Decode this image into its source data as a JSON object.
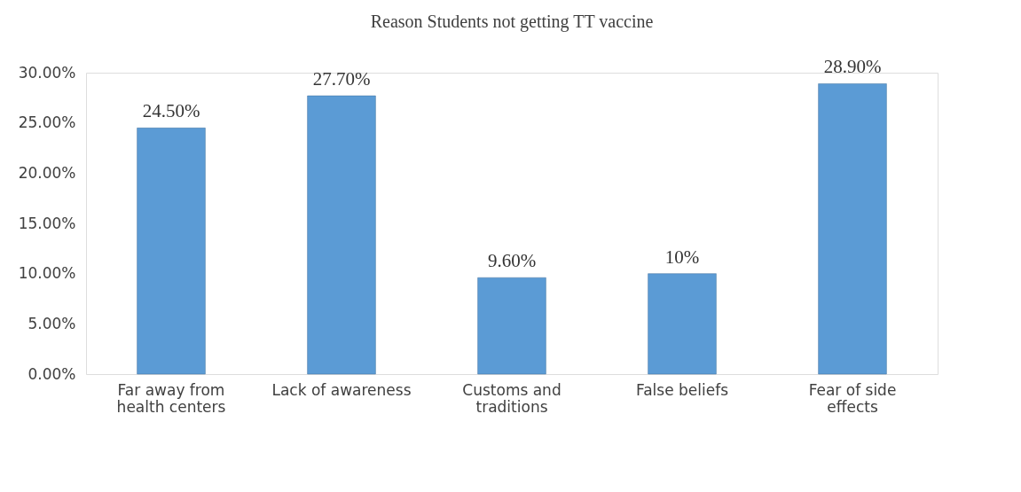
{
  "chart_data": {
    "type": "bar",
    "title": "Reason Students not getting TT vaccine",
    "categories": [
      "Far away from health centers",
      "Lack of awareness",
      "Customs and traditions",
      "False beliefs",
      "Fear of side effects"
    ],
    "values": [
      24.5,
      27.7,
      9.6,
      10,
      28.9
    ],
    "value_labels": [
      "24.50%",
      "27.70%",
      "9.60%",
      "10%",
      "28.90%"
    ],
    "color": "#5b9bd5",
    "ylim": [
      0,
      30
    ],
    "yticks": [
      {
        "value": 0,
        "label": "0.00%"
      },
      {
        "value": 5,
        "label": "5.00%"
      },
      {
        "value": 10,
        "label": "10.00%"
      },
      {
        "value": 15,
        "label": "15.00%"
      },
      {
        "value": 20,
        "label": "20.00%"
      },
      {
        "value": 25,
        "label": "25.00%"
      },
      {
        "value": 30,
        "label": "30.00%"
      }
    ],
    "grid": false
  }
}
